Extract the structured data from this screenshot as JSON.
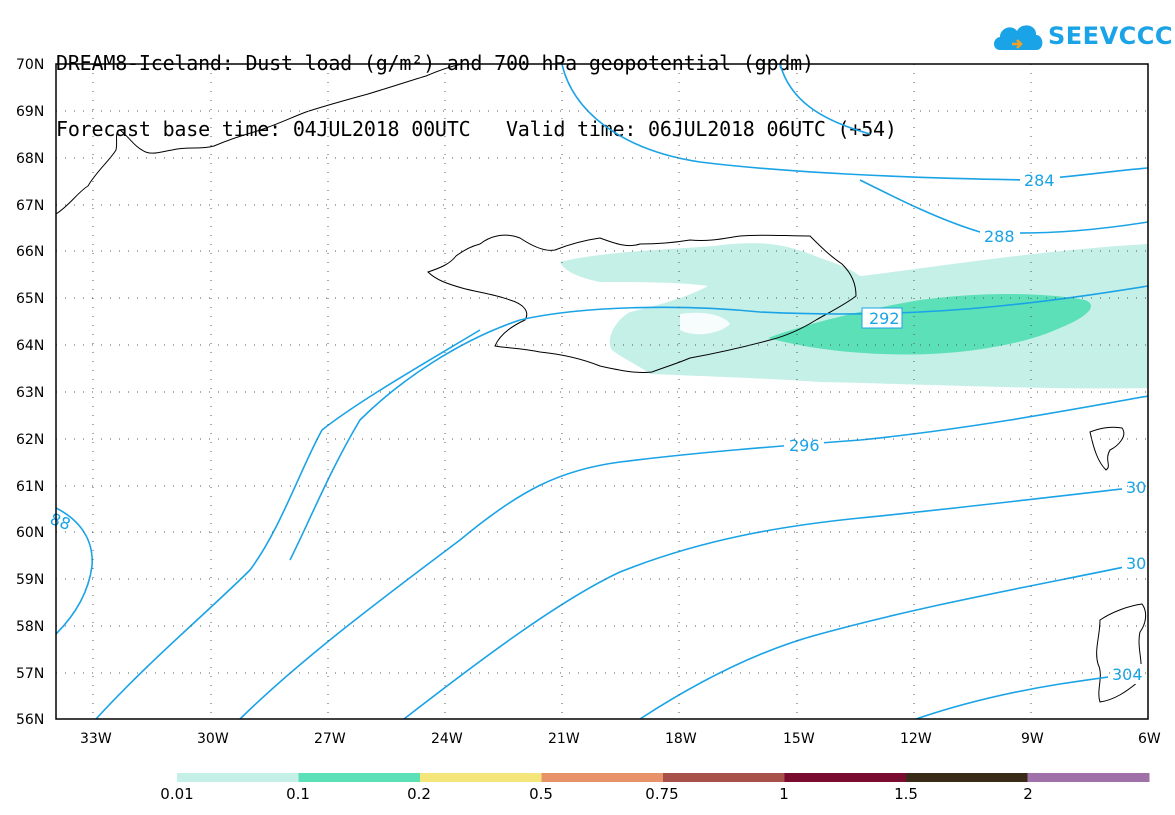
{
  "title": {
    "line1": "DREAM8-Iceland: Dust load (g/m²) and 700 hPa geopotential (gpdm)",
    "line2": "Forecast base time: 04JUL2018 00UTC   Valid time: 06JUL2018 06UTC (+54)"
  },
  "logo": {
    "text": "SEEVCCC",
    "icon": "cloud-icon",
    "color": "#1aa3e6"
  },
  "map": {
    "lat_labels": [
      "70N",
      "69N",
      "68N",
      "67N",
      "66N",
      "65N",
      "64N",
      "63N",
      "62N",
      "61N",
      "60N",
      "59N",
      "58N",
      "57N",
      "56N"
    ],
    "lon_labels": [
      "33W",
      "30W",
      "27W",
      "24W",
      "21W",
      "18W",
      "15W",
      "12W",
      "9W",
      "6W"
    ],
    "contour_labels": {
      "c284": "284",
      "c288": "288",
      "c292": "292",
      "c296": "296",
      "c300a": "30",
      "c300b": "30",
      "c304": "304",
      "c288w": "88"
    },
    "contour_color": "#1aa3e6"
  },
  "colorbar": {
    "labels": [
      "0.01",
      "0.1",
      "0.2",
      "0.5",
      "0.75",
      "1",
      "1.5",
      "2"
    ],
    "colors": [
      "#c5f0e8",
      "#5ce0b8",
      "#f4e67a",
      "#e8926a",
      "#a8514a",
      "#7a0c30",
      "#3a2a18",
      "#a070a8"
    ]
  }
}
